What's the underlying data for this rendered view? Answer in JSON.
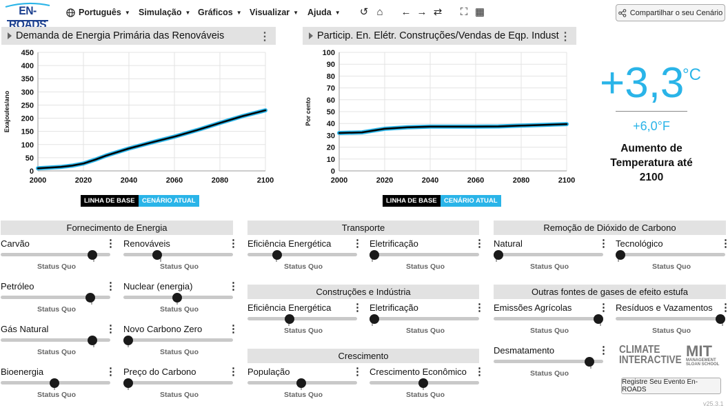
{
  "app": {
    "logo": "EN-ROADS",
    "version": "v25.3.1"
  },
  "nav": {
    "language": "Português",
    "menus": [
      "Simulação",
      "Gráficos",
      "Visualizar",
      "Ajuda"
    ],
    "share_label": "Compartilhar o seu Cenário"
  },
  "graph1": {
    "title": "Demanda de Energia Primária das Renováveis",
    "chart_data": {
      "type": "line",
      "ylabel": "Exajoules/ano",
      "xlabel": "",
      "ylim": [
        0,
        450
      ],
      "xlim": [
        2000,
        2100
      ],
      "yticks": [
        0,
        50,
        100,
        150,
        200,
        250,
        300,
        350,
        400,
        450
      ],
      "xticks": [
        2000,
        2020,
        2040,
        2060,
        2080,
        2100
      ],
      "x": [
        2000,
        2010,
        2015,
        2020,
        2025,
        2030,
        2040,
        2050,
        2060,
        2070,
        2080,
        2090,
        2100
      ],
      "series": [
        {
          "name": "LINHA DE BASE",
          "color": "#000000",
          "values": [
            10,
            15,
            20,
            28,
            42,
            58,
            85,
            108,
            130,
            155,
            182,
            208,
            230
          ]
        },
        {
          "name": "CENÁRIO ATUAL",
          "color": "#2ab4e8",
          "values": [
            10,
            15,
            20,
            28,
            42,
            58,
            85,
            108,
            130,
            155,
            182,
            208,
            230
          ]
        }
      ],
      "grid": true
    }
  },
  "graph2": {
    "title": "Particip. En. Elétr. Construções/Vendas de Eqp. Indust",
    "chart_data": {
      "type": "line",
      "ylabel": "Por cento",
      "xlabel": "",
      "ylim": [
        0,
        100
      ],
      "xlim": [
        2000,
        2100
      ],
      "yticks": [
        0,
        10,
        20,
        30,
        40,
        50,
        60,
        70,
        80,
        90,
        100
      ],
      "xticks": [
        2000,
        2020,
        2040,
        2060,
        2080,
        2100
      ],
      "x": [
        2000,
        2010,
        2015,
        2020,
        2030,
        2040,
        2050,
        2060,
        2070,
        2080,
        2090,
        2100
      ],
      "series": [
        {
          "name": "LINHA DE BASE",
          "color": "#000000",
          "values": [
            32,
            32.5,
            34,
            35.5,
            36.8,
            37.3,
            37.3,
            37.3,
            37.5,
            38.2,
            38.8,
            39.5
          ]
        },
        {
          "name": "CENÁRIO ATUAL",
          "color": "#2ab4e8",
          "values": [
            32,
            32.5,
            34,
            35.5,
            36.8,
            37.3,
            37.3,
            37.3,
            37.5,
            38.2,
            38.8,
            39.5
          ]
        }
      ],
      "grid": true
    }
  },
  "legend": {
    "baseline": "LINHA DE BASE",
    "current": "CENÁRIO ATUAL"
  },
  "temperature": {
    "value": "+3,3",
    "unit": "°C",
    "fahrenheit": "+6,0°F",
    "label": "Aumento de Temperatura até 2100"
  },
  "sections": {
    "supply": "Fornecimento de Energia",
    "transport": "Transporte",
    "co2removal": "Remoção de Dióxido de Carbono",
    "buildings": "Construções e Indústria",
    "othergases": "Outras fontes de gases de efeito estufa",
    "growth": "Crescimento"
  },
  "status_quo": "Status Quo",
  "sliders": [
    {
      "label": "Carvão",
      "value": 0.87,
      "sq": 0.87
    },
    {
      "label": "Renováveis",
      "value": 0.29,
      "sq": 0.33
    },
    {
      "label": "Petróleo",
      "value": 0.85,
      "sq": 0.85
    },
    {
      "label": "Nuclear (energia)",
      "value": 0.49,
      "sq": 0.49
    },
    {
      "label": "Gás Natural",
      "value": 0.87,
      "sq": 0.87
    },
    {
      "label": "Novo Carbono Zero",
      "value": 0.0,
      "sq": 0.02
    },
    {
      "label": "Bioenergia",
      "value": 0.49,
      "sq": 0.49
    },
    {
      "label": "Preço do Carbono",
      "value": 0.0,
      "sq": 0.02
    },
    {
      "label": "Eficiência Energética",
      "value": 0.25,
      "sq": 0.25
    },
    {
      "label": "Eletrificação",
      "value": 0.0,
      "sq": 0.0
    },
    {
      "label": "Eficiência Energética",
      "value": 0.37,
      "sq": 0.37
    },
    {
      "label": "Eletrificação",
      "value": 0.0,
      "sq": 0.0
    },
    {
      "label": "População",
      "value": 0.49,
      "sq": 0.49
    },
    {
      "label": "Crescimento Econômico",
      "value": 0.49,
      "sq": 0.49
    },
    {
      "label": "Natural",
      "value": 0.0,
      "sq": 0.0
    },
    {
      "label": "Tecnológico",
      "value": 0.0,
      "sq": 0.0
    },
    {
      "label": "Emissões Agrícolas",
      "value": 1.0,
      "sq": 1.0
    },
    {
      "label": "Resíduos e Vazamentos",
      "value": 1.0,
      "sq": 1.0
    },
    {
      "label": "Desmatamento",
      "value": 0.91,
      "sq": 0.91
    }
  ],
  "partners": {
    "ci_line1": "CLIMATE",
    "ci_line2": "INTERACTIVE",
    "mit": "MIT",
    "mit_sub1": "MANAGEMENT",
    "mit_sub2": "SLOAN SCHOOL"
  },
  "register_label": "Registre Seu Evento En-ROADS"
}
